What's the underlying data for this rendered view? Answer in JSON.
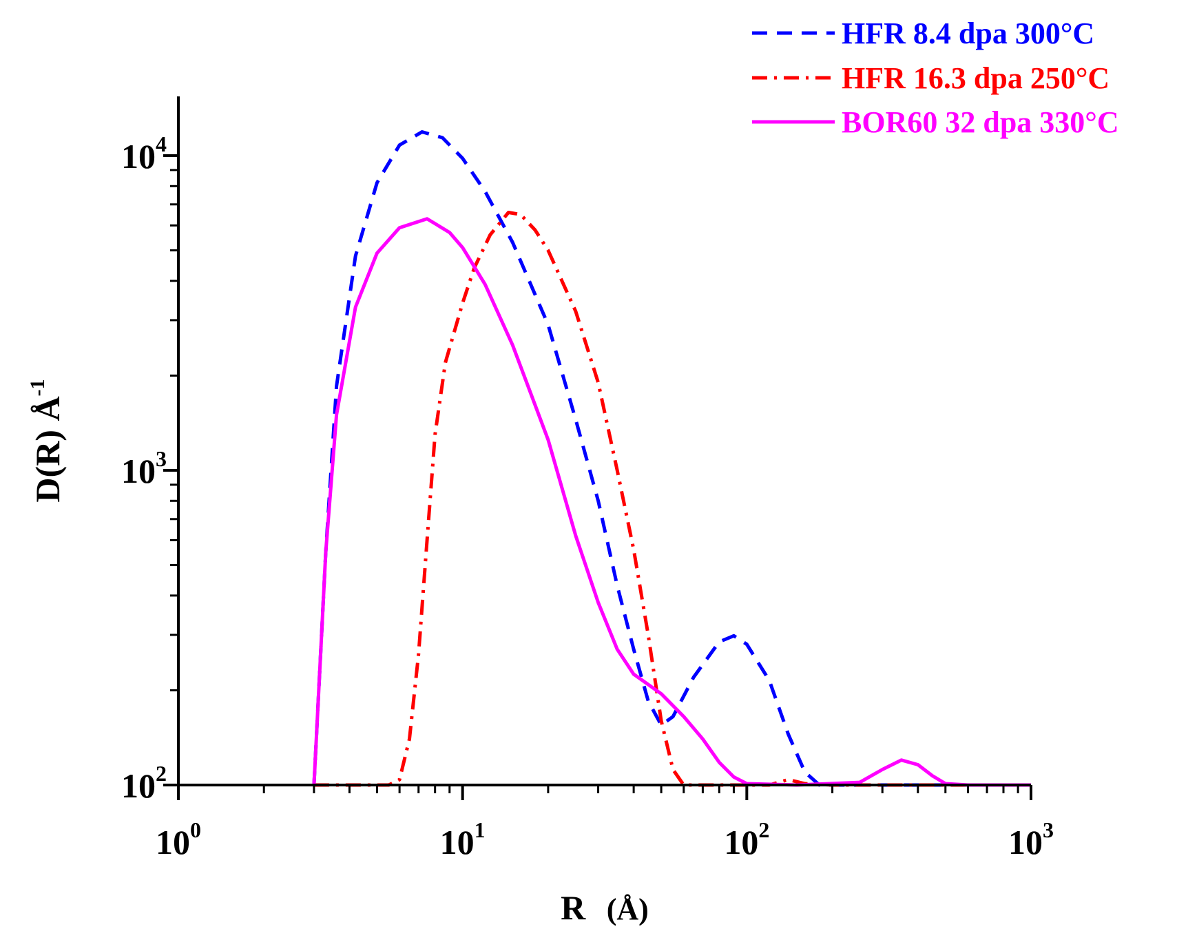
{
  "chart_data": {
    "type": "line",
    "title": "",
    "xlabel": "R",
    "xlabel_unit": "(Å)",
    "ylabel": "D(R) Å",
    "ylabel_sup": "-1",
    "xscale": "log",
    "yscale": "log",
    "xlim": [
      1,
      1000
    ],
    "ylim": [
      100,
      15000
    ],
    "x_ticks": [
      {
        "base": "10",
        "exp": "0",
        "value": 1
      },
      {
        "base": "10",
        "exp": "1",
        "value": 10
      },
      {
        "base": "10",
        "exp": "2",
        "value": 100
      },
      {
        "base": "10",
        "exp": "3",
        "value": 1000
      }
    ],
    "y_ticks": [
      {
        "base": "10",
        "exp": "2",
        "value": 100
      },
      {
        "base": "10",
        "exp": "3",
        "value": 1000
      },
      {
        "base": "10",
        "exp": "4",
        "value": 10000
      }
    ],
    "legend_position": "top-right",
    "series": [
      {
        "name": "HFR 8.4 dpa 300°C",
        "color": "#0000ff",
        "style": "dash",
        "points": [
          [
            3,
            100
          ],
          [
            3.3,
            550
          ],
          [
            3.6,
            1850
          ],
          [
            4.2,
            4800
          ],
          [
            5,
            8200
          ],
          [
            6,
            10800
          ],
          [
            7.2,
            11900
          ],
          [
            8.5,
            11400
          ],
          [
            10,
            9800
          ],
          [
            12,
            7700
          ],
          [
            15,
            5300
          ],
          [
            20,
            2900
          ],
          [
            25,
            1450
          ],
          [
            30,
            800
          ],
          [
            35,
            430
          ],
          [
            40,
            270
          ],
          [
            45,
            185
          ],
          [
            50,
            155
          ],
          [
            55,
            165
          ],
          [
            65,
            220
          ],
          [
            80,
            285
          ],
          [
            90,
            298
          ],
          [
            100,
            280
          ],
          [
            120,
            215
          ],
          [
            140,
            145
          ],
          [
            160,
            110
          ],
          [
            180,
            100
          ],
          [
            300,
            100
          ],
          [
            1000,
            100
          ]
        ]
      },
      {
        "name": "HFR 16.3 dpa 250°C",
        "color": "#ff0000",
        "style": "dashdot",
        "points": [
          [
            3,
            100
          ],
          [
            5.5,
            100
          ],
          [
            6,
            104
          ],
          [
            6.5,
            140
          ],
          [
            7,
            260
          ],
          [
            7.5,
            600
          ],
          [
            8,
            1300
          ],
          [
            8.7,
            2200
          ],
          [
            10,
            3400
          ],
          [
            11,
            4400
          ],
          [
            12.5,
            5600
          ],
          [
            14.5,
            6600
          ],
          [
            16,
            6500
          ],
          [
            18,
            5800
          ],
          [
            20,
            5000
          ],
          [
            25,
            3200
          ],
          [
            30,
            1900
          ],
          [
            35,
            1000
          ],
          [
            40,
            560
          ],
          [
            45,
            300
          ],
          [
            50,
            160
          ],
          [
            55,
            112
          ],
          [
            60,
            100
          ],
          [
            120,
            100
          ],
          [
            140,
            104
          ],
          [
            160,
            101
          ],
          [
            200,
            100
          ],
          [
            1000,
            100
          ]
        ]
      },
      {
        "name": "BOR60 32 dpa 330°C",
        "color": "#ff00ff",
        "style": "solid",
        "points": [
          [
            3,
            100
          ],
          [
            3.3,
            550
          ],
          [
            3.6,
            1500
          ],
          [
            4.2,
            3300
          ],
          [
            5,
            4900
          ],
          [
            6,
            5900
          ],
          [
            7.5,
            6300
          ],
          [
            9,
            5700
          ],
          [
            10,
            5100
          ],
          [
            12,
            3900
          ],
          [
            15,
            2500
          ],
          [
            20,
            1250
          ],
          [
            25,
            620
          ],
          [
            30,
            380
          ],
          [
            35,
            270
          ],
          [
            40,
            225
          ],
          [
            50,
            195
          ],
          [
            60,
            165
          ],
          [
            70,
            140
          ],
          [
            80,
            118
          ],
          [
            90,
            106
          ],
          [
            100,
            101
          ],
          [
            150,
            100
          ],
          [
            250,
            102
          ],
          [
            300,
            112
          ],
          [
            350,
            120
          ],
          [
            400,
            116
          ],
          [
            450,
            107
          ],
          [
            500,
            101
          ],
          [
            600,
            100
          ],
          [
            1000,
            100
          ]
        ]
      }
    ]
  }
}
